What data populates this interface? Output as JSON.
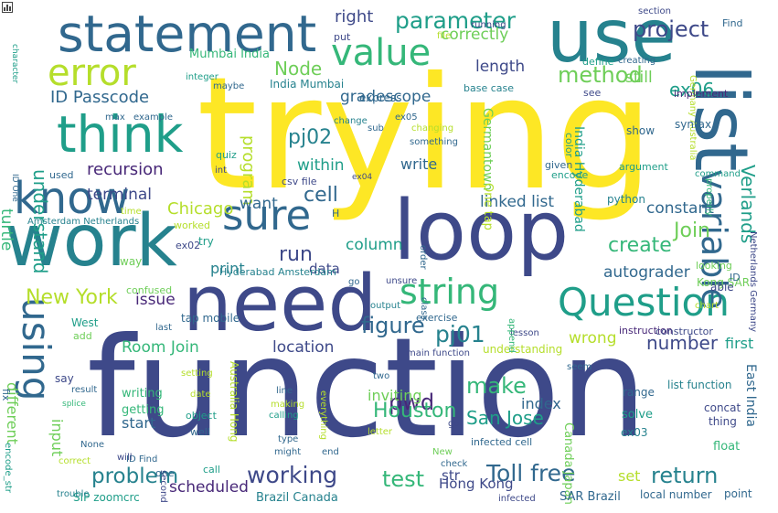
{
  "palette": {
    "yellow": "#fde725",
    "lime": "#b5de2b",
    "green": "#6ece58",
    "emerald": "#35b779",
    "teal": "#1f9e89",
    "cyan": "#26828e",
    "blue": "#31688e",
    "indigo": "#3e4989",
    "purple": "#482878",
    "dark": "#440154"
  },
  "corner_icon": "bar-chart-icon",
  "words": [
    {
      "t": "trying",
      "c": "#fde725"
    },
    {
      "t": "function",
      "c": "#3e4989"
    },
    {
      "t": "need",
      "c": "#3e4989"
    },
    {
      "t": "loop",
      "c": "#3e4989"
    },
    {
      "t": "use",
      "c": "#26828e"
    },
    {
      "t": "work",
      "c": "#26828e"
    },
    {
      "t": "list",
      "c": "#31688e"
    },
    {
      "t": "statement",
      "c": "#31688e"
    },
    {
      "t": "think",
      "c": "#1f9e89"
    },
    {
      "t": "know",
      "c": "#31688e"
    },
    {
      "t": "error",
      "c": "#b5de2b"
    },
    {
      "t": "value",
      "c": "#35b779"
    },
    {
      "t": "using",
      "c": "#31688e"
    },
    {
      "t": "sure",
      "c": "#31688e"
    },
    {
      "t": "Question",
      "c": "#1f9e89"
    },
    {
      "t": "string",
      "c": "#35b779"
    },
    {
      "t": "variable",
      "c": "#31688e"
    },
    {
      "t": "project",
      "c": "#3e4989"
    },
    {
      "t": "parameter",
      "c": "#1f9e89"
    },
    {
      "t": "method",
      "c": "#6ece58"
    },
    {
      "t": "Node",
      "c": "#6ece58"
    },
    {
      "t": "ID Passcode",
      "c": "#31688e"
    },
    {
      "t": "understand",
      "c": "#1f9e89"
    },
    {
      "t": "pj02",
      "c": "#26828e"
    },
    {
      "t": "recursion",
      "c": "#482878"
    },
    {
      "t": "cell",
      "c": "#31688e"
    },
    {
      "t": "New York",
      "c": "#b5de2b"
    },
    {
      "t": "Join",
      "c": "#6ece58"
    },
    {
      "t": "create",
      "c": "#35b779"
    },
    {
      "t": "run",
      "c": "#3e4989"
    },
    {
      "t": "working",
      "c": "#3e4989"
    },
    {
      "t": "problem",
      "c": "#26828e"
    },
    {
      "t": "figure",
      "c": "#31688e"
    },
    {
      "t": "pj01",
      "c": "#26828e"
    },
    {
      "t": "make",
      "c": "#35b779"
    },
    {
      "t": "number",
      "c": "#3e4989"
    },
    {
      "t": "pwd",
      "c": "#482878"
    },
    {
      "t": "Toll free",
      "c": "#31688e"
    },
    {
      "t": "return",
      "c": "#26828e"
    },
    {
      "t": "test",
      "c": "#35b779"
    },
    {
      "t": "Houston",
      "c": "#35b779"
    },
    {
      "t": "San Jose",
      "c": "#1f9e89"
    },
    {
      "t": "ex06",
      "c": "#1f9e89"
    },
    {
      "t": "Verlands",
      "c": "#1f9e89"
    },
    {
      "t": "right",
      "c": "#3e4989"
    },
    {
      "t": "correctly",
      "c": "#6ece58"
    },
    {
      "t": "length",
      "c": "#3e4989"
    },
    {
      "t": "still",
      "c": "#6ece58"
    },
    {
      "t": "gradescope",
      "c": "#31688e"
    },
    {
      "t": "program",
      "c": "#b5de2b"
    },
    {
      "t": "within",
      "c": "#1f9e89"
    },
    {
      "t": "terminal",
      "c": "#3e4989"
    },
    {
      "t": "Chicago",
      "c": "#b5de2b"
    },
    {
      "t": "linked list",
      "c": "#31688e"
    },
    {
      "t": "constant",
      "c": "#31688e"
    },
    {
      "t": "turtle",
      "c": "#35b779"
    },
    {
      "t": "write",
      "c": "#31688e"
    },
    {
      "t": "want",
      "c": "#31688e"
    },
    {
      "t": "column",
      "c": "#1f9e89"
    },
    {
      "t": "data",
      "c": "#3e4989"
    },
    {
      "t": "issue",
      "c": "#482878"
    },
    {
      "t": "autograder",
      "c": "#31688e"
    },
    {
      "t": "location",
      "c": "#3e4989"
    },
    {
      "t": "Room Join",
      "c": "#35b779"
    },
    {
      "t": "wrong",
      "c": "#b5de2b"
    },
    {
      "t": "first",
      "c": "#1f9e89"
    },
    {
      "t": "different",
      "c": "#6ece58"
    },
    {
      "t": "index",
      "c": "#31688e"
    },
    {
      "t": "inviting",
      "c": "#6ece58"
    },
    {
      "t": "start",
      "c": "#31688e"
    },
    {
      "t": "scheduled",
      "c": "#482878"
    },
    {
      "t": "Hong Kong",
      "c": "#3e4989"
    },
    {
      "t": "set",
      "c": "#b5de2b"
    },
    {
      "t": "str",
      "c": "#3e4989"
    },
    {
      "t": "print",
      "c": "#26828e"
    },
    {
      "t": "Germantown",
      "c": "#6ece58"
    },
    {
      "t": "One tap",
      "c": "#b5de2b"
    },
    {
      "t": "India Hyderabad",
      "c": "#1f9e89"
    },
    {
      "t": "Canada Japan",
      "c": "#6ece58"
    },
    {
      "t": "input",
      "c": "#6ece58"
    },
    {
      "t": "Mumbai India",
      "c": "#35b779"
    },
    {
      "t": "India Mumbai",
      "c": "#26828e"
    },
    {
      "t": "Hyderabad Amsterdam",
      "c": "#26828e"
    },
    {
      "t": "Brazil Canada",
      "c": "#26828e"
    },
    {
      "t": "SIP zoomcrc",
      "c": "#1f9e89"
    },
    {
      "t": "local number",
      "c": "#31688e"
    },
    {
      "t": "SAR Brazil",
      "c": "#31688e"
    },
    {
      "t": "Kong SAR",
      "c": "#6ece58"
    },
    {
      "t": "Australia Hong",
      "c": "#b5de2b"
    },
    {
      "t": "Germany Australia",
      "c": "#b5de2b"
    },
    {
      "t": "Netherlands Germany",
      "c": "#3e4989"
    },
    {
      "t": "East India",
      "c": "#31688e"
    },
    {
      "t": "Amsterdam Netherlands",
      "c": "#26828e"
    },
    {
      "t": "understanding",
      "c": "#b5de2b"
    },
    {
      "t": "getting",
      "c": "#35b779"
    },
    {
      "t": "writing",
      "c": "#35b779"
    },
    {
      "t": "exercise",
      "c": "#31688e"
    },
    {
      "t": "main function",
      "c": "#3e4989"
    },
    {
      "t": "tap mobile",
      "c": "#31688e"
    },
    {
      "t": "instruction",
      "c": "#482878"
    },
    {
      "t": "constructor",
      "c": "#3e4989"
    },
    {
      "t": "python",
      "c": "#26828e"
    },
    {
      "t": "list function",
      "c": "#26828e"
    },
    {
      "t": "concat",
      "c": "#3e4989"
    },
    {
      "t": "thing",
      "c": "#3e4989"
    },
    {
      "t": "float",
      "c": "#35b779"
    },
    {
      "t": "range",
      "c": "#31688e"
    },
    {
      "t": "solve",
      "c": "#1f9e89"
    },
    {
      "t": "infected cell",
      "c": "#31688e"
    },
    {
      "t": "infected",
      "c": "#3e4989"
    },
    {
      "t": "point",
      "c": "#31688e"
    },
    {
      "t": "ex03",
      "c": "#26828e"
    },
    {
      "t": "show",
      "c": "#31688e"
    },
    {
      "t": "argument",
      "c": "#1f9e89"
    },
    {
      "t": "command",
      "c": "#1f9e89"
    },
    {
      "t": "syntax",
      "c": "#31688e"
    },
    {
      "t": "implement",
      "c": "#482878"
    },
    {
      "t": "Find",
      "c": "#31688e"
    },
    {
      "t": "ID",
      "c": "#31688e"
    },
    {
      "t": "able",
      "c": "#3e4989"
    },
    {
      "t": "looking",
      "c": "#6ece58"
    },
    {
      "t": "chart",
      "c": "#b5de2b"
    },
    {
      "t": "properly",
      "c": "#35b779"
    },
    {
      "t": "section",
      "c": "#3e4989"
    },
    {
      "t": "define",
      "c": "#1f9e89"
    },
    {
      "t": "creating",
      "c": "#31688e"
    },
    {
      "t": "base case",
      "c": "#26828e"
    },
    {
      "t": "see",
      "c": "#3e4989"
    },
    {
      "t": "running",
      "c": "#3e4989"
    },
    {
      "t": "color",
      "c": "#1f9e89"
    },
    {
      "t": "given",
      "c": "#31688e"
    },
    {
      "t": "encode",
      "c": "#1f9e89"
    },
    {
      "t": "file",
      "c": "#b5de2b"
    },
    {
      "t": "put",
      "c": "#3e4989"
    },
    {
      "t": "express",
      "c": "#31688e"
    },
    {
      "t": "ex05",
      "c": "#31688e"
    },
    {
      "t": "changing",
      "c": "#b5de2b"
    },
    {
      "t": "something",
      "c": "#31688e"
    },
    {
      "t": "ex04",
      "c": "#3e4989"
    },
    {
      "t": "change",
      "c": "#26828e"
    },
    {
      "t": "sub",
      "c": "#31688e"
    },
    {
      "t": "csv file",
      "c": "#3e4989"
    },
    {
      "t": "quiz",
      "c": "#1f9e89"
    },
    {
      "t": "int",
      "c": "#3e4989"
    },
    {
      "t": "integer",
      "c": "#1f9e89"
    },
    {
      "t": "maybe",
      "c": "#31688e"
    },
    {
      "t": "max",
      "c": "#31688e"
    },
    {
      "t": "example",
      "c": "#31688e"
    },
    {
      "t": "used",
      "c": "#31688e"
    },
    {
      "t": "time",
      "c": "#b5de2b"
    },
    {
      "t": "worked",
      "c": "#b5de2b"
    },
    {
      "t": "ex02",
      "c": "#3e4989"
    },
    {
      "t": "try",
      "c": "#1f9e89"
    },
    {
      "t": "way",
      "c": "#6ece58"
    },
    {
      "t": "confused",
      "c": "#6ece58"
    },
    {
      "t": "West",
      "c": "#1f9e89"
    },
    {
      "t": "add",
      "c": "#6ece58"
    },
    {
      "t": "splice",
      "c": "#35b779"
    },
    {
      "t": "say",
      "c": "#3e4989"
    },
    {
      "t": "fix",
      "c": "#31688e"
    },
    {
      "t": "result",
      "c": "#31688e"
    },
    {
      "t": "setting",
      "c": "#b5de2b"
    },
    {
      "t": "date",
      "c": "#b5de2b"
    },
    {
      "t": "object",
      "c": "#1f9e89"
    },
    {
      "t": "well",
      "c": "#31688e"
    },
    {
      "t": "ID Find",
      "c": "#31688e"
    },
    {
      "t": "None",
      "c": "#31688e"
    },
    {
      "t": "correct",
      "c": "#b5de2b"
    },
    {
      "t": "will",
      "c": "#3e4989"
    },
    {
      "t": "one",
      "c": "#31688e"
    },
    {
      "t": "second",
      "c": "#3e4989"
    },
    {
      "t": "call",
      "c": "#1f9e89"
    },
    {
      "t": "trouble",
      "c": "#26828e"
    },
    {
      "t": "encode_str",
      "c": "#1f9e89"
    },
    {
      "t": "type",
      "c": "#31688e"
    },
    {
      "t": "might",
      "c": "#31688e"
    },
    {
      "t": "end",
      "c": "#31688e"
    },
    {
      "t": "line",
      "c": "#31688e"
    },
    {
      "t": "making",
      "c": "#b5de2b"
    },
    {
      "t": "calling",
      "c": "#1f9e89"
    },
    {
      "t": "everything",
      "c": "#b5de2b"
    },
    {
      "t": "two",
      "c": "#31688e"
    },
    {
      "t": "letter",
      "c": "#b5de2b"
    },
    {
      "t": "New",
      "c": "#6ece58"
    },
    {
      "t": "check",
      "c": "#31688e"
    },
    {
      "t": "got",
      "c": "#3e4989"
    },
    {
      "t": "seem",
      "c": "#31688e"
    },
    {
      "t": "lesson",
      "c": "#3e4989"
    },
    {
      "t": "last",
      "c": "#31688e"
    },
    {
      "t": "append",
      "c": "#35b779"
    },
    {
      "t": "go",
      "c": "#31688e"
    },
    {
      "t": "output",
      "c": "#26828e"
    },
    {
      "t": "unsure",
      "c": "#3e4989"
    },
    {
      "t": "order",
      "c": "#31688e"
    },
    {
      "t": "class",
      "c": "#31688e"
    },
    {
      "t": "ID One",
      "c": "#31688e"
    },
    {
      "t": "character",
      "c": "#1f9e89"
    },
    {
      "t": "H",
      "c": "#31688e"
    }
  ]
}
